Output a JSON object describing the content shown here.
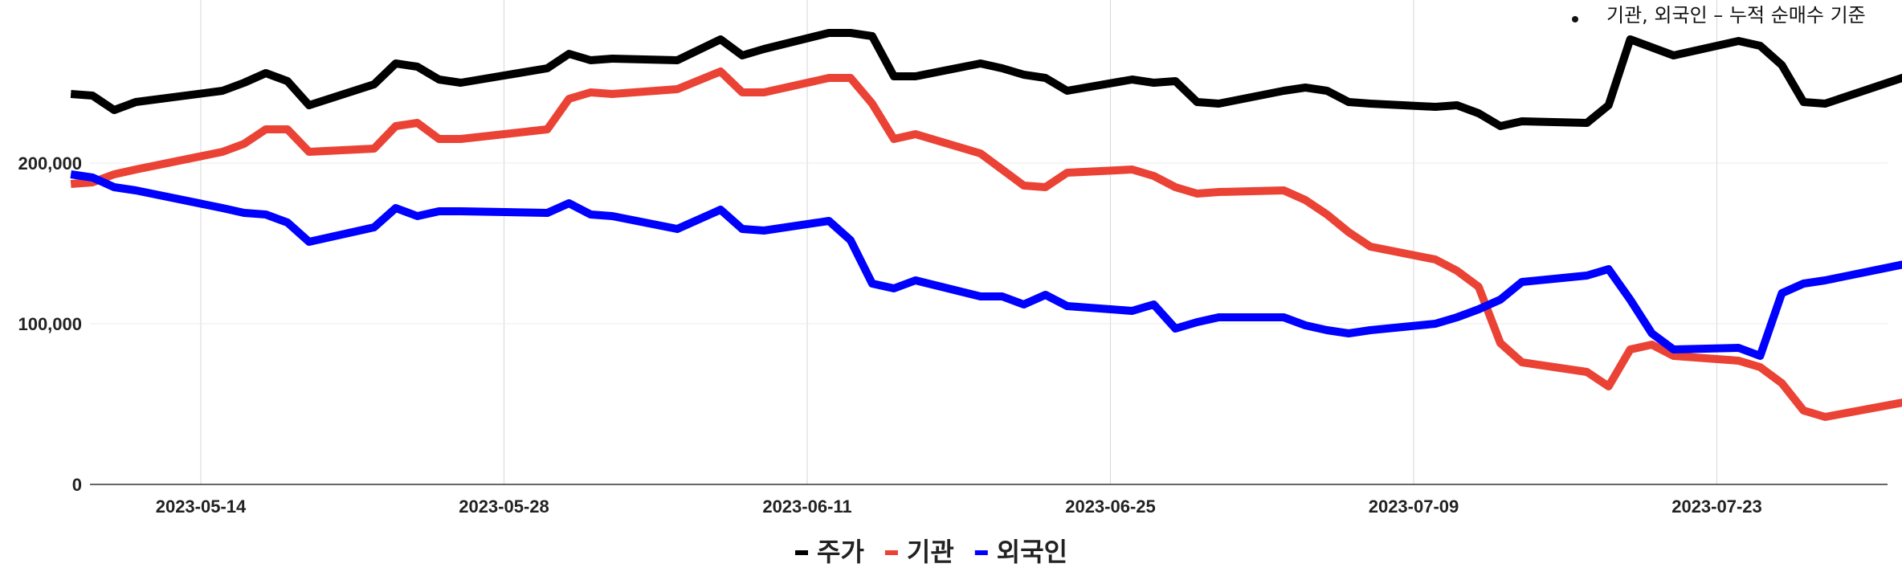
{
  "chart_data": {
    "type": "line",
    "title": "",
    "xlabel": "",
    "ylabel": "",
    "annotation": "기관, 외국인 – 누적 순매수 기준",
    "x_range": [
      "2023-05-08",
      "2023-08-01"
    ],
    "ylim": [
      0,
      300000
    ],
    "y_ticks": [
      0,
      100000,
      200000
    ],
    "y_tick_labels": [
      "0",
      "100,000",
      "200,000"
    ],
    "x_ticks": [
      "2023-05-14",
      "2023-05-28",
      "2023-06-11",
      "2023-06-25",
      "2023-07-09",
      "2023-07-23"
    ],
    "grid": true,
    "legend_position": "bottom",
    "colors": {
      "price": "#000000",
      "institution": "#ea4335",
      "foreign": "#0000ff"
    },
    "series": [
      {
        "name": "주가",
        "color": "#000000",
        "points": [
          [
            "2023-05-08",
            243000
          ],
          [
            "2023-05-09",
            242000
          ],
          [
            "2023-05-10",
            233000
          ],
          [
            "2023-05-11",
            238000
          ],
          [
            "2023-05-15",
            245000
          ],
          [
            "2023-05-16",
            250000
          ],
          [
            "2023-05-17",
            256000
          ],
          [
            "2023-05-18",
            251000
          ],
          [
            "2023-05-19",
            236000
          ],
          [
            "2023-05-22",
            249000
          ],
          [
            "2023-05-23",
            262000
          ],
          [
            "2023-05-24",
            260000
          ],
          [
            "2023-05-25",
            252000
          ],
          [
            "2023-05-26",
            250000
          ],
          [
            "2023-05-30",
            259000
          ],
          [
            "2023-05-31",
            268000
          ],
          [
            "2023-06-01",
            264000
          ],
          [
            "2023-06-02",
            265000
          ],
          [
            "2023-06-05",
            264000
          ],
          [
            "2023-06-07",
            277000
          ],
          [
            "2023-06-08",
            267000
          ],
          [
            "2023-06-09",
            271000
          ],
          [
            "2023-06-12",
            281000
          ],
          [
            "2023-06-13",
            281000
          ],
          [
            "2023-06-14",
            279000
          ],
          [
            "2023-06-15",
            254000
          ],
          [
            "2023-06-16",
            254000
          ],
          [
            "2023-06-19",
            262000
          ],
          [
            "2023-06-20",
            259000
          ],
          [
            "2023-06-21",
            255000
          ],
          [
            "2023-06-22",
            253000
          ],
          [
            "2023-06-23",
            245000
          ],
          [
            "2023-06-26",
            252000
          ],
          [
            "2023-06-27",
            250000
          ],
          [
            "2023-06-28",
            251000
          ],
          [
            "2023-06-29",
            238000
          ],
          [
            "2023-06-30",
            237000
          ],
          [
            "2023-07-03",
            245000
          ],
          [
            "2023-07-04",
            247000
          ],
          [
            "2023-07-05",
            245000
          ],
          [
            "2023-07-06",
            238000
          ],
          [
            "2023-07-07",
            237000
          ],
          [
            "2023-07-10",
            235000
          ],
          [
            "2023-07-11",
            236000
          ],
          [
            "2023-07-12",
            231000
          ],
          [
            "2023-07-13",
            223000
          ],
          [
            "2023-07-14",
            226000
          ],
          [
            "2023-07-17",
            225000
          ],
          [
            "2023-07-18",
            236000
          ],
          [
            "2023-07-19",
            277000
          ],
          [
            "2023-07-20",
            272000
          ],
          [
            "2023-07-21",
            267000
          ],
          [
            "2023-07-24",
            276000
          ],
          [
            "2023-07-25",
            273000
          ],
          [
            "2023-07-26",
            261000
          ],
          [
            "2023-07-27",
            238000
          ],
          [
            "2023-07-28",
            237000
          ],
          [
            "2023-08-01",
            255000
          ]
        ]
      },
      {
        "name": "기관",
        "color": "#ea4335",
        "points": [
          [
            "2023-05-08",
            187000
          ],
          [
            "2023-05-09",
            188000
          ],
          [
            "2023-05-10",
            193000
          ],
          [
            "2023-05-11",
            196000
          ],
          [
            "2023-05-15",
            207000
          ],
          [
            "2023-05-16",
            212000
          ],
          [
            "2023-05-17",
            221000
          ],
          [
            "2023-05-18",
            221000
          ],
          [
            "2023-05-19",
            207000
          ],
          [
            "2023-05-22",
            209000
          ],
          [
            "2023-05-23",
            223000
          ],
          [
            "2023-05-24",
            225000
          ],
          [
            "2023-05-25",
            215000
          ],
          [
            "2023-05-26",
            215000
          ],
          [
            "2023-05-30",
            221000
          ],
          [
            "2023-05-31",
            240000
          ],
          [
            "2023-06-01",
            244000
          ],
          [
            "2023-06-02",
            243000
          ],
          [
            "2023-06-05",
            246000
          ],
          [
            "2023-06-07",
            257000
          ],
          [
            "2023-06-08",
            244000
          ],
          [
            "2023-06-09",
            244000
          ],
          [
            "2023-06-12",
            253000
          ],
          [
            "2023-06-13",
            253000
          ],
          [
            "2023-06-14",
            237000
          ],
          [
            "2023-06-15",
            215000
          ],
          [
            "2023-06-16",
            218000
          ],
          [
            "2023-06-19",
            206000
          ],
          [
            "2023-06-20",
            196000
          ],
          [
            "2023-06-21",
            186000
          ],
          [
            "2023-06-22",
            185000
          ],
          [
            "2023-06-23",
            194000
          ],
          [
            "2023-06-26",
            196000
          ],
          [
            "2023-06-27",
            192000
          ],
          [
            "2023-06-28",
            185000
          ],
          [
            "2023-06-29",
            181000
          ],
          [
            "2023-06-30",
            182000
          ],
          [
            "2023-07-03",
            183000
          ],
          [
            "2023-07-04",
            177000
          ],
          [
            "2023-07-05",
            168000
          ],
          [
            "2023-07-06",
            157000
          ],
          [
            "2023-07-07",
            148000
          ],
          [
            "2023-07-10",
            140000
          ],
          [
            "2023-07-11",
            133000
          ],
          [
            "2023-07-12",
            123000
          ],
          [
            "2023-07-13",
            88000
          ],
          [
            "2023-07-14",
            76000
          ],
          [
            "2023-07-17",
            70000
          ],
          [
            "2023-07-18",
            61000
          ],
          [
            "2023-07-19",
            84000
          ],
          [
            "2023-07-20",
            87000
          ],
          [
            "2023-07-21",
            80000
          ],
          [
            "2023-07-24",
            77000
          ],
          [
            "2023-07-25",
            73000
          ],
          [
            "2023-07-26",
            63000
          ],
          [
            "2023-07-27",
            46000
          ],
          [
            "2023-07-28",
            42000
          ],
          [
            "2023-08-01",
            52000
          ]
        ]
      },
      {
        "name": "외국인",
        "color": "#0000ff",
        "points": [
          [
            "2023-05-08",
            193000
          ],
          [
            "2023-05-09",
            191000
          ],
          [
            "2023-05-10",
            185000
          ],
          [
            "2023-05-11",
            183000
          ],
          [
            "2023-05-15",
            172000
          ],
          [
            "2023-05-16",
            169000
          ],
          [
            "2023-05-17",
            168000
          ],
          [
            "2023-05-18",
            163000
          ],
          [
            "2023-05-19",
            151000
          ],
          [
            "2023-05-22",
            160000
          ],
          [
            "2023-05-23",
            172000
          ],
          [
            "2023-05-24",
            167000
          ],
          [
            "2023-05-25",
            170000
          ],
          [
            "2023-05-26",
            170000
          ],
          [
            "2023-05-30",
            169000
          ],
          [
            "2023-05-31",
            175000
          ],
          [
            "2023-06-01",
            168000
          ],
          [
            "2023-06-02",
            167000
          ],
          [
            "2023-06-05",
            159000
          ],
          [
            "2023-06-07",
            171000
          ],
          [
            "2023-06-08",
            159000
          ],
          [
            "2023-06-09",
            158000
          ],
          [
            "2023-06-12",
            164000
          ],
          [
            "2023-06-13",
            152000
          ],
          [
            "2023-06-14",
            125000
          ],
          [
            "2023-06-15",
            122000
          ],
          [
            "2023-06-16",
            127000
          ],
          [
            "2023-06-19",
            117000
          ],
          [
            "2023-06-20",
            117000
          ],
          [
            "2023-06-21",
            112000
          ],
          [
            "2023-06-22",
            118000
          ],
          [
            "2023-06-23",
            111000
          ],
          [
            "2023-06-26",
            108000
          ],
          [
            "2023-06-27",
            112000
          ],
          [
            "2023-06-28",
            97000
          ],
          [
            "2023-06-29",
            101000
          ],
          [
            "2023-06-30",
            104000
          ],
          [
            "2023-07-03",
            104000
          ],
          [
            "2023-07-04",
            99000
          ],
          [
            "2023-07-05",
            96000
          ],
          [
            "2023-07-06",
            94000
          ],
          [
            "2023-07-07",
            96000
          ],
          [
            "2023-07-10",
            100000
          ],
          [
            "2023-07-11",
            104000
          ],
          [
            "2023-07-12",
            109000
          ],
          [
            "2023-07-13",
            115000
          ],
          [
            "2023-07-14",
            126000
          ],
          [
            "2023-07-17",
            130000
          ],
          [
            "2023-07-18",
            134000
          ],
          [
            "2023-07-19",
            115000
          ],
          [
            "2023-07-20",
            94000
          ],
          [
            "2023-07-21",
            84000
          ],
          [
            "2023-07-24",
            85000
          ],
          [
            "2023-07-25",
            80000
          ],
          [
            "2023-07-26",
            119000
          ],
          [
            "2023-07-27",
            125000
          ],
          [
            "2023-07-28",
            127000
          ],
          [
            "2023-08-01",
            138000
          ]
        ]
      }
    ]
  }
}
